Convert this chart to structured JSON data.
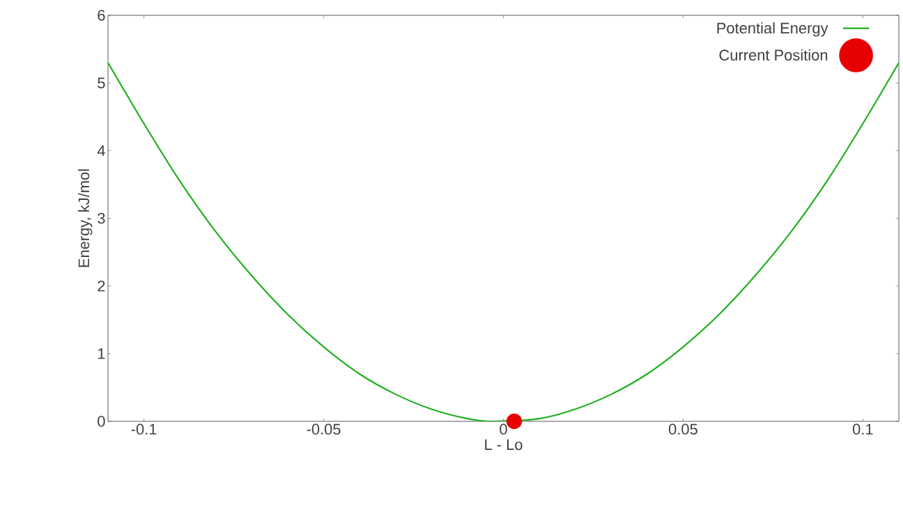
{
  "chart_data": {
    "type": "line",
    "xlabel": "L - Lo",
    "ylabel": "Energy, kJ/mol",
    "xlim": [
      -0.11,
      0.11
    ],
    "ylim": [
      0,
      6
    ],
    "xticks": [
      -0.1,
      -0.05,
      0,
      0.05,
      0.1
    ],
    "yticks": [
      0,
      1,
      2,
      3,
      4,
      5,
      6
    ],
    "grid": false,
    "legend": "top right",
    "series": [
      {
        "name": "Potential Energy",
        "color": "#1fb01f",
        "marker": "none",
        "line_style": "solid",
        "x": [
          -0.11,
          -0.1,
          -0.09,
          -0.08,
          -0.07,
          -0.06,
          -0.05,
          -0.04,
          -0.03,
          -0.02,
          -0.01,
          -0.003,
          0.01,
          0.02,
          0.03,
          0.04,
          0.05,
          0.06,
          0.07,
          0.08,
          0.09,
          0.1,
          0.11
        ],
        "values": [
          5.3,
          4.4,
          3.55,
          2.8,
          2.15,
          1.58,
          1.1,
          0.7,
          0.4,
          0.18,
          0.04,
          0,
          0.04,
          0.18,
          0.4,
          0.7,
          1.1,
          1.58,
          2.15,
          2.8,
          3.55,
          4.4,
          5.3
        ]
      },
      {
        "name": "Current Position",
        "type": "scatter",
        "color": "#e60000",
        "marker": "circle",
        "x": [
          0.003
        ],
        "values": [
          0
        ]
      }
    ]
  }
}
